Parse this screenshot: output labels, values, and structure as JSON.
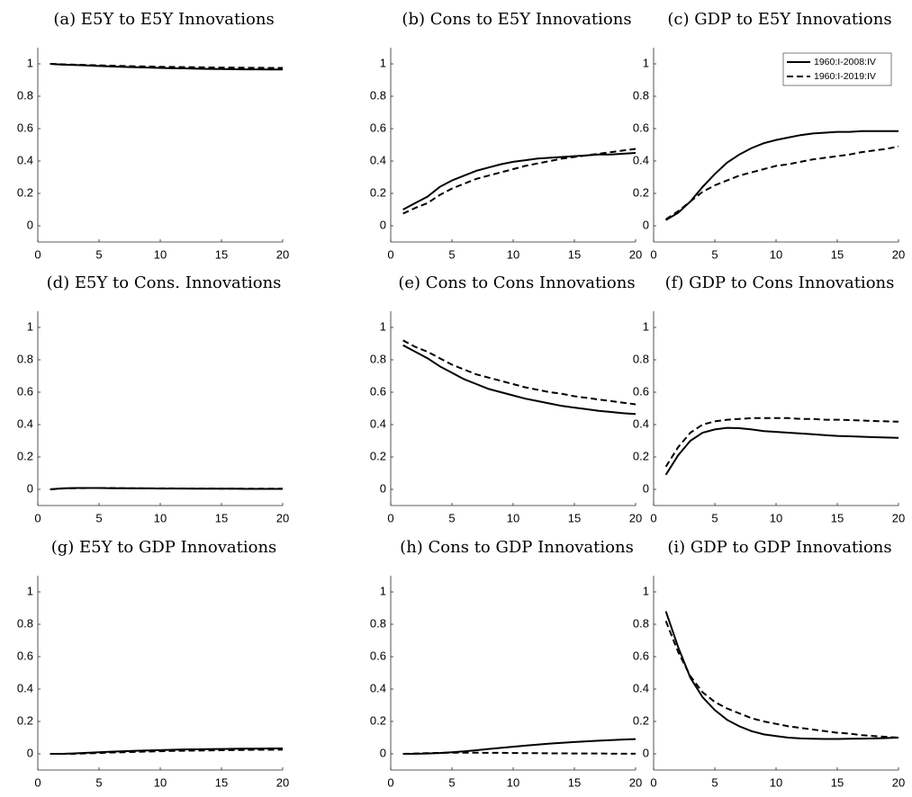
{
  "chart_data": [
    {
      "type": "line",
      "title": "(a) E5Y to E5Y Innovations",
      "x": [
        1,
        2,
        3,
        4,
        5,
        6,
        7,
        8,
        9,
        10,
        11,
        12,
        13,
        14,
        15,
        16,
        17,
        18,
        19,
        20
      ],
      "xlim": [
        0,
        20
      ],
      "xticks": [
        0,
        5,
        10,
        15,
        20
      ],
      "ylim": [
        -0.1,
        1.1
      ],
      "yticks": [
        0,
        0.2,
        0.4,
        0.6,
        0.8,
        1
      ],
      "series": [
        {
          "color": "#000000",
          "style": "solid",
          "values": [
            1.0,
            0.995,
            0.993,
            0.99,
            0.987,
            0.984,
            0.981,
            0.979,
            0.977,
            0.975,
            0.973,
            0.972,
            0.97,
            0.969,
            0.968,
            0.967,
            0.966,
            0.966,
            0.965,
            0.965
          ]
        },
        {
          "color": "#000000",
          "style": "dashed",
          "values": [
            1.0,
            0.997,
            0.995,
            0.993,
            0.991,
            0.989,
            0.987,
            0.985,
            0.984,
            0.982,
            0.981,
            0.98,
            0.979,
            0.978,
            0.977,
            0.977,
            0.976,
            0.976,
            0.975,
            0.975
          ]
        }
      ]
    },
    {
      "type": "line",
      "title": "(b) Cons to E5Y Innovations",
      "x": [
        1,
        2,
        3,
        4,
        5,
        6,
        7,
        8,
        9,
        10,
        11,
        12,
        13,
        14,
        15,
        16,
        17,
        18,
        19,
        20
      ],
      "xlim": [
        0,
        20
      ],
      "xticks": [
        0,
        5,
        10,
        15,
        20
      ],
      "ylim": [
        -0.1,
        1.1
      ],
      "yticks": [
        0,
        0.2,
        0.4,
        0.6,
        0.8,
        1
      ],
      "series": [
        {
          "color": "#000000",
          "style": "solid",
          "values": [
            0.1,
            0.14,
            0.18,
            0.24,
            0.28,
            0.31,
            0.34,
            0.36,
            0.38,
            0.395,
            0.405,
            0.415,
            0.42,
            0.425,
            0.43,
            0.435,
            0.44,
            0.44,
            0.445,
            0.45
          ]
        },
        {
          "color": "#000000",
          "style": "dashed",
          "values": [
            0.075,
            0.11,
            0.14,
            0.19,
            0.23,
            0.26,
            0.29,
            0.31,
            0.33,
            0.35,
            0.37,
            0.385,
            0.4,
            0.415,
            0.425,
            0.435,
            0.445,
            0.455,
            0.465,
            0.475
          ]
        }
      ]
    },
    {
      "type": "line",
      "title": "(c) GDP to E5Y Innovations",
      "x": [
        1,
        2,
        3,
        4,
        5,
        6,
        7,
        8,
        9,
        10,
        11,
        12,
        13,
        14,
        15,
        16,
        17,
        18,
        19,
        20
      ],
      "xlim": [
        0,
        20
      ],
      "xticks": [
        0,
        5,
        10,
        15,
        20
      ],
      "ylim": [
        -0.1,
        1.1
      ],
      "yticks": [
        0,
        0.2,
        0.4,
        0.6,
        0.8,
        1
      ],
      "legend": "upper right",
      "series": [
        {
          "name": "1960:I-2008:IV",
          "color": "#000000",
          "style": "solid",
          "values": [
            0.035,
            0.08,
            0.15,
            0.24,
            0.32,
            0.39,
            0.44,
            0.48,
            0.51,
            0.53,
            0.545,
            0.56,
            0.57,
            0.575,
            0.58,
            0.58,
            0.585,
            0.585,
            0.585,
            0.585
          ]
        },
        {
          "name": "1960:I-2019:IV",
          "color": "#000000",
          "style": "dashed",
          "values": [
            0.04,
            0.09,
            0.15,
            0.21,
            0.25,
            0.28,
            0.31,
            0.33,
            0.35,
            0.37,
            0.38,
            0.395,
            0.41,
            0.42,
            0.43,
            0.44,
            0.455,
            0.465,
            0.475,
            0.49
          ]
        }
      ]
    },
    {
      "type": "line",
      "title": "(d) E5Y to Cons. Innovations",
      "x": [
        1,
        2,
        3,
        4,
        5,
        6,
        7,
        8,
        9,
        10,
        11,
        12,
        13,
        14,
        15,
        16,
        17,
        18,
        19,
        20
      ],
      "xlim": [
        0,
        20
      ],
      "xticks": [
        0,
        5,
        10,
        15,
        20
      ],
      "ylim": [
        -0.1,
        1.1
      ],
      "yticks": [
        0,
        0.2,
        0.4,
        0.6,
        0.8,
        1
      ],
      "series": [
        {
          "color": "#000000",
          "style": "solid",
          "values": [
            0,
            0.006,
            0.008,
            0.008,
            0.008,
            0.007,
            0.007,
            0.006,
            0.006,
            0.005,
            0.005,
            0.005,
            0.004,
            0.004,
            0.004,
            0.004,
            0.003,
            0.003,
            0.003,
            0.003
          ]
        },
        {
          "color": "#000000",
          "style": "dashed",
          "values": [
            0,
            0.005,
            0.007,
            0.008,
            0.008,
            0.008,
            0.007,
            0.007,
            0.006,
            0.006,
            0.006,
            0.005,
            0.005,
            0.005,
            0.004,
            0.004,
            0.004,
            0.004,
            0.004,
            0.004
          ]
        }
      ]
    },
    {
      "type": "line",
      "title": "(e) Cons to Cons Innovations",
      "x": [
        1,
        2,
        3,
        4,
        5,
        6,
        7,
        8,
        9,
        10,
        11,
        12,
        13,
        14,
        15,
        16,
        17,
        18,
        19,
        20
      ],
      "xlim": [
        0,
        20
      ],
      "xticks": [
        0,
        5,
        10,
        15,
        20
      ],
      "ylim": [
        -0.1,
        1.1
      ],
      "yticks": [
        0,
        0.2,
        0.4,
        0.6,
        0.8,
        1
      ],
      "series": [
        {
          "color": "#000000",
          "style": "solid",
          "values": [
            0.89,
            0.85,
            0.81,
            0.76,
            0.72,
            0.68,
            0.65,
            0.62,
            0.6,
            0.58,
            0.56,
            0.545,
            0.53,
            0.515,
            0.505,
            0.495,
            0.485,
            0.478,
            0.47,
            0.465
          ]
        },
        {
          "color": "#000000",
          "style": "dashed",
          "values": [
            0.92,
            0.88,
            0.85,
            0.81,
            0.77,
            0.74,
            0.71,
            0.69,
            0.67,
            0.65,
            0.63,
            0.615,
            0.6,
            0.59,
            0.575,
            0.565,
            0.555,
            0.545,
            0.535,
            0.525
          ]
        }
      ]
    },
    {
      "type": "line",
      "title": "(f) GDP to Cons Innovations",
      "x": [
        1,
        2,
        3,
        4,
        5,
        6,
        7,
        8,
        9,
        10,
        11,
        12,
        13,
        14,
        15,
        16,
        17,
        18,
        19,
        20
      ],
      "xlim": [
        0,
        20
      ],
      "xticks": [
        0,
        5,
        10,
        15,
        20
      ],
      "ylim": [
        -0.1,
        1.1
      ],
      "yticks": [
        0,
        0.2,
        0.4,
        0.6,
        0.8,
        1
      ],
      "series": [
        {
          "color": "#000000",
          "style": "solid",
          "values": [
            0.09,
            0.21,
            0.3,
            0.35,
            0.37,
            0.38,
            0.378,
            0.37,
            0.36,
            0.355,
            0.35,
            0.345,
            0.34,
            0.335,
            0.33,
            0.328,
            0.325,
            0.322,
            0.32,
            0.318
          ]
        },
        {
          "color": "#000000",
          "style": "dashed",
          "values": [
            0.14,
            0.26,
            0.35,
            0.4,
            0.42,
            0.43,
            0.435,
            0.44,
            0.44,
            0.44,
            0.44,
            0.435,
            0.435,
            0.43,
            0.43,
            0.428,
            0.425,
            0.422,
            0.42,
            0.418
          ]
        }
      ]
    },
    {
      "type": "line",
      "title": "(g) E5Y to GDP Innovations",
      "x": [
        1,
        2,
        3,
        4,
        5,
        6,
        7,
        8,
        9,
        10,
        11,
        12,
        13,
        14,
        15,
        16,
        17,
        18,
        19,
        20
      ],
      "xlim": [
        0,
        20
      ],
      "xticks": [
        0,
        5,
        10,
        15,
        20
      ],
      "ylim": [
        -0.1,
        1.1
      ],
      "yticks": [
        0,
        0.2,
        0.4,
        0.6,
        0.8,
        1
      ],
      "series": [
        {
          "color": "#000000",
          "style": "solid",
          "values": [
            0,
            0,
            0.003,
            0.006,
            0.01,
            0.013,
            0.016,
            0.019,
            0.021,
            0.023,
            0.025,
            0.027,
            0.028,
            0.029,
            0.03,
            0.031,
            0.032,
            0.032,
            0.033,
            0.033
          ]
        },
        {
          "color": "#000000",
          "style": "dashed",
          "values": [
            0,
            0,
            0,
            0.003,
            0.005,
            0.008,
            0.01,
            0.012,
            0.014,
            0.016,
            0.018,
            0.019,
            0.02,
            0.021,
            0.022,
            0.023,
            0.024,
            0.025,
            0.025,
            0.026
          ]
        }
      ]
    },
    {
      "type": "line",
      "title": "(h) Cons to GDP Innovations",
      "x": [
        1,
        2,
        3,
        4,
        5,
        6,
        7,
        8,
        9,
        10,
        11,
        12,
        13,
        14,
        15,
        16,
        17,
        18,
        19,
        20
      ],
      "xlim": [
        0,
        20
      ],
      "xticks": [
        0,
        5,
        10,
        15,
        20
      ],
      "ylim": [
        -0.1,
        1.1
      ],
      "yticks": [
        0,
        0.2,
        0.4,
        0.6,
        0.8,
        1
      ],
      "series": [
        {
          "color": "#000000",
          "style": "solid",
          "values": [
            0,
            0,
            0.002,
            0.005,
            0.01,
            0.015,
            0.022,
            0.03,
            0.037,
            0.044,
            0.051,
            0.057,
            0.063,
            0.068,
            0.073,
            0.077,
            0.081,
            0.085,
            0.088,
            0.091
          ]
        },
        {
          "color": "#000000",
          "style": "dashed",
          "values": [
            0,
            0.002,
            0.004,
            0.006,
            0.007,
            0.007,
            0.007,
            0.006,
            0.006,
            0.005,
            0.004,
            0.004,
            0.003,
            0.003,
            0.002,
            0.002,
            0.002,
            0.001,
            0.001,
            0.001
          ]
        }
      ]
    },
    {
      "type": "line",
      "title": "(i) GDP to GDP Innovations",
      "x": [
        1,
        2,
        3,
        4,
        5,
        6,
        7,
        8,
        9,
        10,
        11,
        12,
        13,
        14,
        15,
        16,
        17,
        18,
        19,
        20
      ],
      "xlim": [
        0,
        20
      ],
      "xticks": [
        0,
        5,
        10,
        15,
        20
      ],
      "ylim": [
        -0.1,
        1.1
      ],
      "yticks": [
        0,
        0.2,
        0.4,
        0.6,
        0.8,
        1
      ],
      "series": [
        {
          "color": "#000000",
          "style": "solid",
          "values": [
            0.88,
            0.66,
            0.47,
            0.35,
            0.27,
            0.21,
            0.17,
            0.14,
            0.12,
            0.11,
            0.1,
            0.095,
            0.093,
            0.092,
            0.092,
            0.093,
            0.094,
            0.095,
            0.097,
            0.1
          ]
        },
        {
          "color": "#000000",
          "style": "dashed",
          "values": [
            0.82,
            0.63,
            0.48,
            0.38,
            0.32,
            0.28,
            0.25,
            0.22,
            0.2,
            0.185,
            0.17,
            0.16,
            0.15,
            0.14,
            0.13,
            0.125,
            0.115,
            0.11,
            0.105,
            0.1
          ]
        }
      ]
    }
  ]
}
